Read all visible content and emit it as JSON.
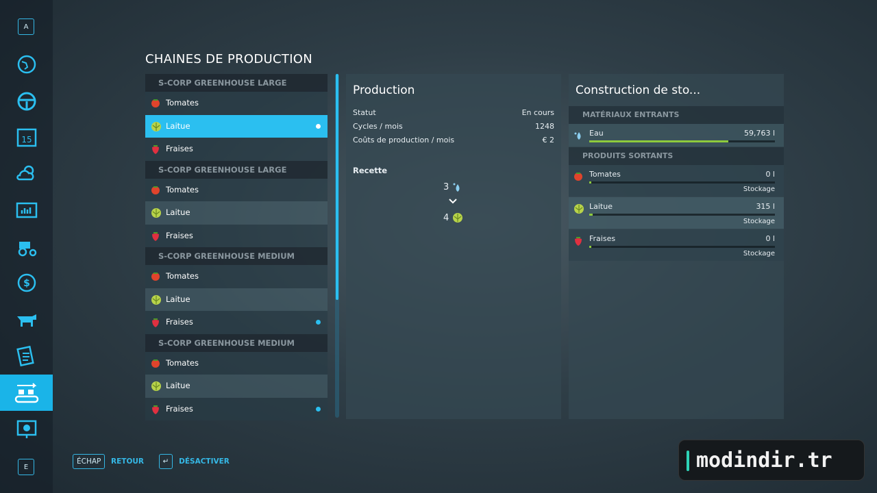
{
  "sidebar": {
    "top_key": "A",
    "bottom_key": "E"
  },
  "title": "CHAINES DE PRODUCTION",
  "groups": [
    {
      "name": "S-CORP GREENHOUSE LARGE",
      "items": [
        {
          "name": "Tomates",
          "selected": false,
          "dot": false
        },
        {
          "name": "Laitue",
          "selected": true,
          "dot": true
        },
        {
          "name": "Fraises",
          "selected": false,
          "dot": false
        }
      ]
    },
    {
      "name": "S-CORP GREENHOUSE LARGE",
      "items": [
        {
          "name": "Tomates",
          "selected": false,
          "dot": false
        },
        {
          "name": "Laitue",
          "selected": false,
          "dot": false
        },
        {
          "name": "Fraises",
          "selected": false,
          "dot": false
        }
      ]
    },
    {
      "name": "S-CORP GREENHOUSE MEDIUM",
      "items": [
        {
          "name": "Tomates",
          "selected": false,
          "dot": false
        },
        {
          "name": "Laitue",
          "selected": false,
          "dot": false
        },
        {
          "name": "Fraises",
          "selected": false,
          "dot": true
        }
      ]
    },
    {
      "name": "S-CORP GREENHOUSE MEDIUM",
      "items": [
        {
          "name": "Tomates",
          "selected": false,
          "dot": false
        },
        {
          "name": "Laitue",
          "selected": false,
          "dot": false
        },
        {
          "name": "Fraises",
          "selected": false,
          "dot": true
        }
      ]
    }
  ],
  "production": {
    "title": "Production",
    "rows": [
      {
        "label": "Statut",
        "value": "En cours"
      },
      {
        "label": "Cycles / mois",
        "value": "1248"
      },
      {
        "label": "Coûts de production / mois",
        "value": "€ 2"
      }
    ],
    "recipe_label": "Recette",
    "recipe_input": "3",
    "recipe_output": "4"
  },
  "storage": {
    "title": "Construction de sto...",
    "input_header": "MATÉRIAUX ENTRANTS",
    "inputs": [
      {
        "name": "Eau",
        "amount": "59,763 l",
        "fill": 75
      }
    ],
    "output_header": "PRODUITS SORTANTS",
    "outputs": [
      {
        "name": "Tomates",
        "amount": "0 l",
        "fill": 0,
        "mode": "Stockage"
      },
      {
        "name": "Laitue",
        "amount": "315 l",
        "fill": 2,
        "mode": "Stockage"
      },
      {
        "name": "Fraises",
        "amount": "0 l",
        "fill": 0,
        "mode": "Stockage"
      }
    ]
  },
  "footer": {
    "key1": "ÉCHAP",
    "action1": "RETOUR",
    "key2": "↵",
    "action2": "DÉSACTIVER"
  },
  "watermark": "modindir.tr"
}
